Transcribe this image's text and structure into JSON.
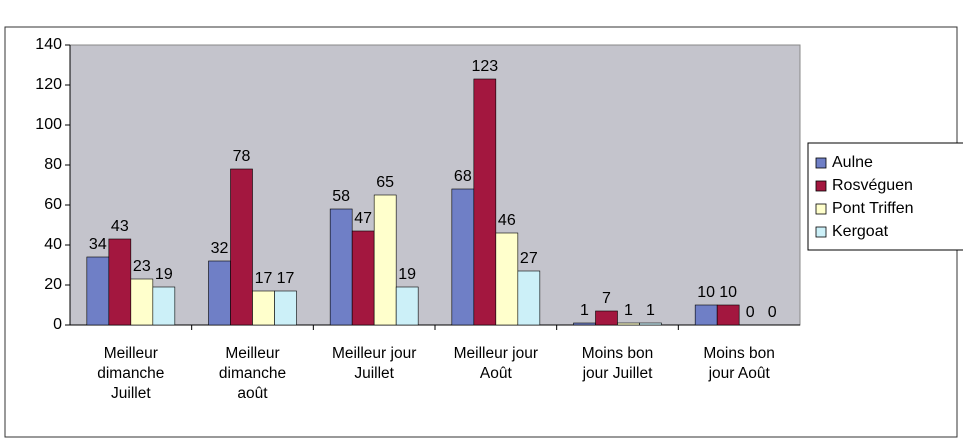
{
  "chart_data": {
    "type": "bar",
    "categories": [
      "Meilleur dimanche Juillet",
      "Meilleur dimanche août",
      "Meilleur jour Juillet",
      "Meilleur jour Août",
      "Moins bon jour Juillet",
      "Moins bon jour Août"
    ],
    "series": [
      {
        "name": "Aulne",
        "color": "#6f7fc6",
        "values": [
          34,
          32,
          58,
          68,
          1,
          10
        ]
      },
      {
        "name": "Rosvéguen",
        "color": "#a3173f",
        "values": [
          43,
          78,
          47,
          123,
          7,
          10
        ]
      },
      {
        "name": "Pont Triffen",
        "color": "#ffffcc",
        "values": [
          23,
          17,
          65,
          46,
          1,
          0
        ]
      },
      {
        "name": "Kergoat",
        "color": "#ccf0f8",
        "values": [
          19,
          17,
          19,
          27,
          1,
          0
        ]
      }
    ],
    "ylim": [
      0,
      140
    ],
    "yticks": [
      0,
      20,
      40,
      60,
      80,
      100,
      120,
      140
    ],
    "grid": false,
    "legend": "right",
    "plot_background": "#c4c4cc"
  }
}
